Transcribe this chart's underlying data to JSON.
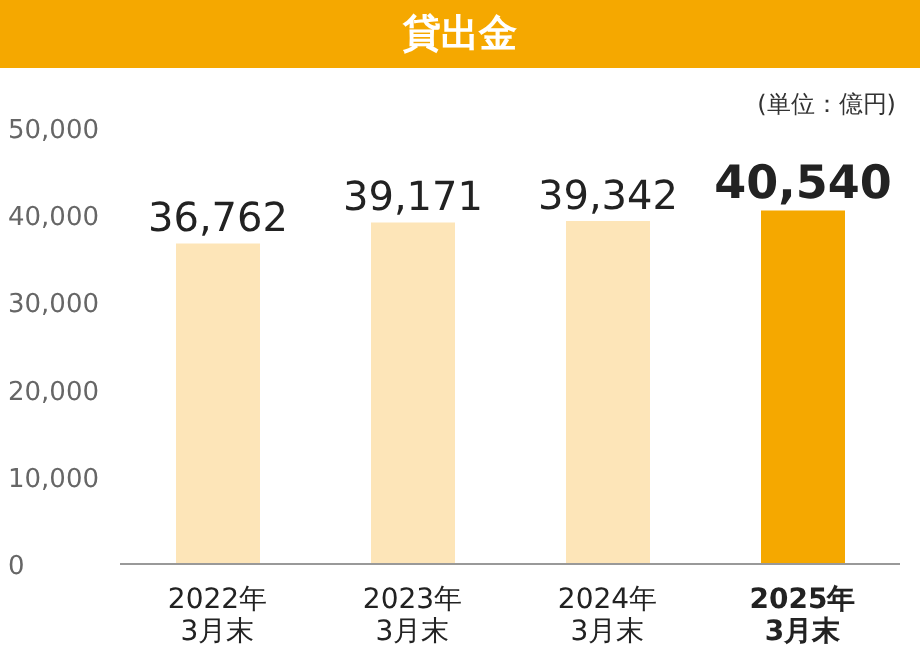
{
  "chart_data": {
    "type": "bar",
    "title": "貸出金",
    "annotations": [
      "(単位：億円)"
    ],
    "categories": [
      "2022年\n3月末",
      "2023年\n3月末",
      "2024年\n3月末",
      "2025年\n3月末"
    ],
    "values": [
      36762,
      39171,
      39342,
      40540
    ],
    "value_labels": [
      "36,762",
      "39,171",
      "39,342",
      "40,540"
    ],
    "colors": [
      "#fde5b8",
      "#fde5b8",
      "#fde5b8",
      "#f5a800"
    ],
    "ylim": [
      0,
      50000
    ],
    "yticks": [
      0,
      {
        "value": 10000,
        "label": "10,000"
      },
      {
        "value": 20000,
        "label": "20,000"
      },
      {
        "value": 30000,
        "label": "30,000"
      },
      {
        "value": 40000,
        "label": "40,000"
      },
      {
        "value": 50000,
        "label": "50,000"
      }
    ]
  }
}
